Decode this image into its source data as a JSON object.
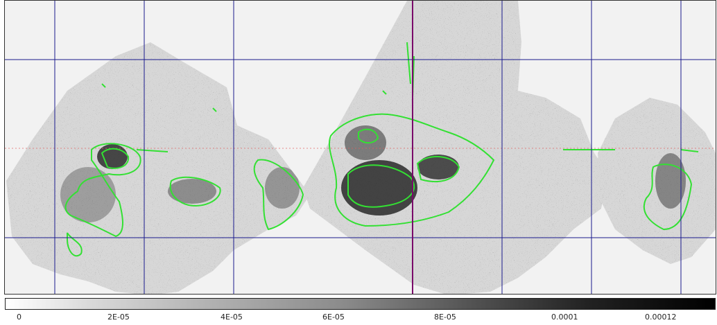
{
  "image": {
    "background": "#f2f2f2",
    "contour_color": "#33e033",
    "grid_color": "#1a1a8c",
    "highlight_grid_color": "#7a0a6a"
  },
  "colorbar": {
    "ticks": [
      "0",
      "2E-05",
      "4E-05",
      "6E-05",
      "8E-05",
      "0.0001",
      "0.00012"
    ]
  }
}
